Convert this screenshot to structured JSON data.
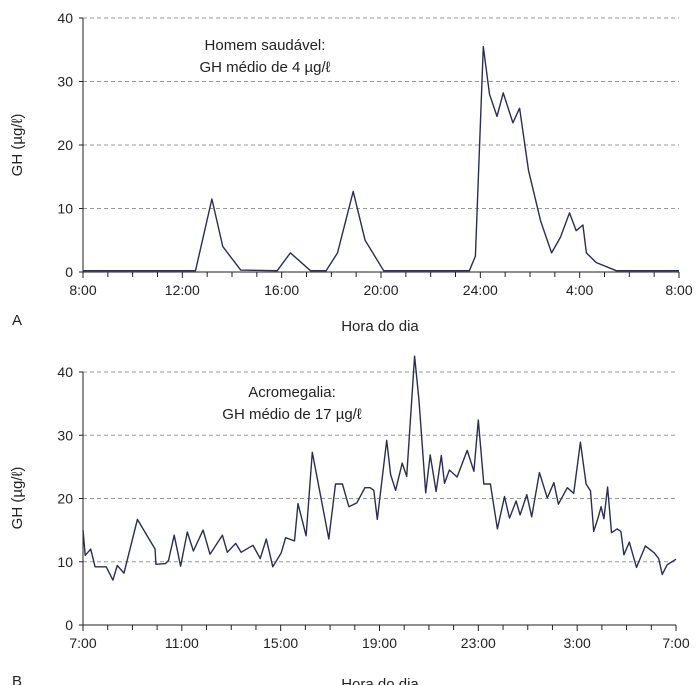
{
  "chart_data": [
    {
      "type": "line",
      "panel_label": "A",
      "annotation": [
        "Homem saudável:",
        "GH médio de 4 µg/ℓ"
      ],
      "xlabel": "Hora do dia",
      "ylabel": "GH (µg/ℓ)",
      "x_unit": "hours since 8:00",
      "xlim": [
        0,
        24
      ],
      "ylim": [
        0,
        40
      ],
      "yticks": [
        0,
        10,
        20,
        30,
        40
      ],
      "xtick_labels": [
        "8:00",
        "12:00",
        "16:00",
        "20:00",
        "24:00",
        "4:00",
        "8:00"
      ],
      "grid": "horizontal dashed",
      "line_color": "#2b2e52",
      "series": [
        {
          "name": "GH",
          "x": [
            0,
            4.53,
            5.19,
            5.63,
            6.35,
            7.82,
            8.35,
            9.16,
            9.79,
            10.25,
            10.88,
            11.36,
            12.11,
            15.56,
            15.8,
            16.12,
            16.37,
            16.67,
            16.92,
            17.31,
            17.58,
            17.94,
            18.43,
            18.87,
            19.23,
            19.59,
            19.86,
            20.13,
            20.27,
            20.66,
            21.47,
            24
          ],
          "y": [
            0.2,
            0.2,
            11.5,
            4,
            0.3,
            0.2,
            3,
            0.2,
            0.2,
            3,
            12.7,
            5,
            0.2,
            0.2,
            2.5,
            35.5,
            28,
            24.5,
            28.2,
            23.5,
            25.8,
            16,
            8,
            3,
            5.5,
            9.3,
            6.5,
            7.4,
            3,
            1.5,
            0.2,
            0.2
          ]
        }
      ]
    },
    {
      "type": "line",
      "panel_label": "B",
      "annotation": [
        "Acromegalia:",
        "GH médio de 17 µg/ℓ"
      ],
      "xlabel": "Hora do dia",
      "ylabel": "GH (µg/ℓ)",
      "x_unit": "hours since 7:00",
      "xlim": [
        0,
        24
      ],
      "ylim": [
        0,
        40
      ],
      "yticks": [
        0,
        10,
        20,
        30,
        40
      ],
      "xtick_labels": [
        "7:00",
        "11:00",
        "15:00",
        "19:00",
        "23:00",
        "3:00",
        "7:00"
      ],
      "grid": "horizontal dashed",
      "line_color": "#2b2e52",
      "series": [
        {
          "name": "GH",
          "x": [
            0,
            0.09,
            0.31,
            0.49,
            0.94,
            1.21,
            1.39,
            1.66,
            2.2,
            2.92,
            2.95,
            3.33,
            3.46,
            3.69,
            3.95,
            4.22,
            4.47,
            4.86,
            5.14,
            5.64,
            5.84,
            6.18,
            6.4,
            6.88,
            7.17,
            7.42,
            7.68,
            8.02,
            8.2,
            8.56,
            8.7,
            9.03,
            9.28,
            9.95,
            10.22,
            10.5,
            10.76,
            11.08,
            11.41,
            11.62,
            11.77,
            11.91,
            12.29,
            12.45,
            12.65,
            12.92,
            13.1,
            13.42,
            13.6,
            13.87,
            14.05,
            14.29,
            14.5,
            14.63,
            14.83,
            15.14,
            15.55,
            15.82,
            16,
            16.22,
            16.49,
            16.77,
            17.06,
            17.26,
            17.53,
            17.69,
            17.96,
            18.16,
            18.47,
            18.79,
            19.06,
            19.24,
            19.6,
            19.86,
            20.13,
            20.36,
            20.54,
            20.67,
            20.85,
            20.97,
            21.08,
            21.23,
            21.39,
            21.62,
            21.77,
            21.89,
            22.11,
            22.4,
            22.76,
            23.12,
            23.3,
            23.44,
            23.64,
            24
          ],
          "y": [
            15,
            11,
            12,
            9.2,
            9.2,
            7.1,
            9.4,
            8.2,
            16.7,
            12,
            9.6,
            9.7,
            10.2,
            14.2,
            9.3,
            14.7,
            11.7,
            15,
            11.2,
            14.2,
            11.5,
            12.9,
            11.5,
            12.6,
            10.5,
            13.6,
            9.2,
            11.4,
            13.8,
            13.3,
            19.2,
            14.1,
            27.3,
            13.6,
            22.3,
            22.3,
            18.7,
            19.3,
            21.7,
            21.7,
            21.3,
            16.7,
            29.2,
            23.8,
            21.3,
            25.6,
            23.5,
            42.5,
            35.5,
            20.9,
            26.9,
            21.1,
            26.8,
            22.4,
            24.5,
            23.4,
            27.6,
            24.3,
            32.4,
            22.3,
            22.3,
            15.2,
            20.3,
            16.9,
            19.6,
            17.4,
            20.6,
            17.1,
            24.1,
            20.1,
            22.5,
            19.1,
            21.7,
            20.8,
            28.9,
            22.3,
            21.2,
            14.8,
            17,
            18.7,
            16.8,
            21.8,
            14.6,
            15.2,
            14.8,
            11.1,
            13.1,
            9.1,
            12.5,
            11.4,
            10.5,
            8,
            9.5,
            10.4
          ]
        }
      ]
    }
  ]
}
